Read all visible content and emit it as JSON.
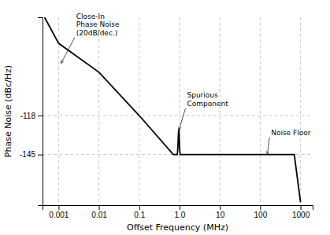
{
  "chart_data": {
    "type": "line",
    "x_label": "Offset Frequency (MHz)",
    "y_label": "Phase Noise (dBc/Hz)",
    "log": "x",
    "grid": true,
    "color": "#000000",
    "xlim": [
      0.0004,
      2000
    ],
    "ylim": [
      -180,
      -50
    ],
    "xticks": [
      0.001,
      0.01,
      0.1,
      {
        "value": 1.0,
        "label": "1.0"
      },
      10,
      100,
      1000
    ],
    "yticks": [
      -118,
      -145
    ],
    "x": [
      0.00045,
      0.001,
      0.01,
      0.1,
      0.7,
      0.88,
      0.91,
      0.94,
      0.97,
      1.0,
      1.03,
      700,
      1000
    ],
    "values": [
      -50,
      -68,
      -88,
      -118,
      -145,
      -145,
      -140,
      -130,
      -127,
      -140,
      -145,
      -145,
      -178
    ],
    "annotations": [
      {
        "text": "Close-In\nPhase Noise\n(20dB/dec.)",
        "x": 0.00115,
        "y": -82,
        "text_x": 0.0025,
        "text_y": -64
      },
      {
        "text": "Spurious\nComponent",
        "x": 0.97,
        "y": -128,
        "text_x": 1.4,
        "text_y": -113
      },
      {
        "text": "Noise Floor",
        "x": 150,
        "y": -145,
        "text_x": 170,
        "text_y": -133
      }
    ]
  }
}
